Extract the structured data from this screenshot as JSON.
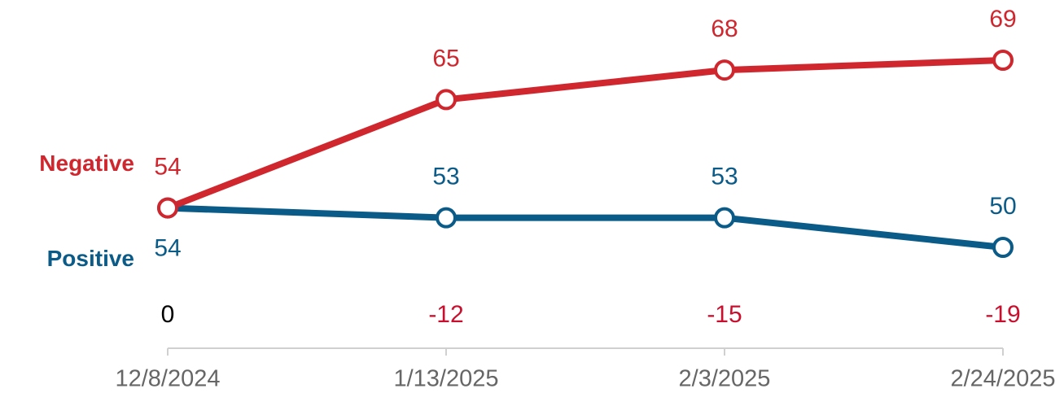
{
  "chart_data": {
    "type": "line",
    "categories": [
      "12/8/2024",
      "1/13/2025",
      "2/3/2025",
      "2/24/2025"
    ],
    "series": [
      {
        "name": "Negative",
        "color": "#d0262e",
        "values": [
          54,
          65,
          68,
          69
        ]
      },
      {
        "name": "Positive",
        "color": "#0b5b88",
        "values": [
          54,
          53,
          53,
          50
        ]
      }
    ],
    "net_values": [
      0,
      -12,
      -15,
      -19
    ],
    "net_colors": [
      "#000000",
      "#c8102e",
      "#c8102e",
      "#c8102e"
    ]
  }
}
